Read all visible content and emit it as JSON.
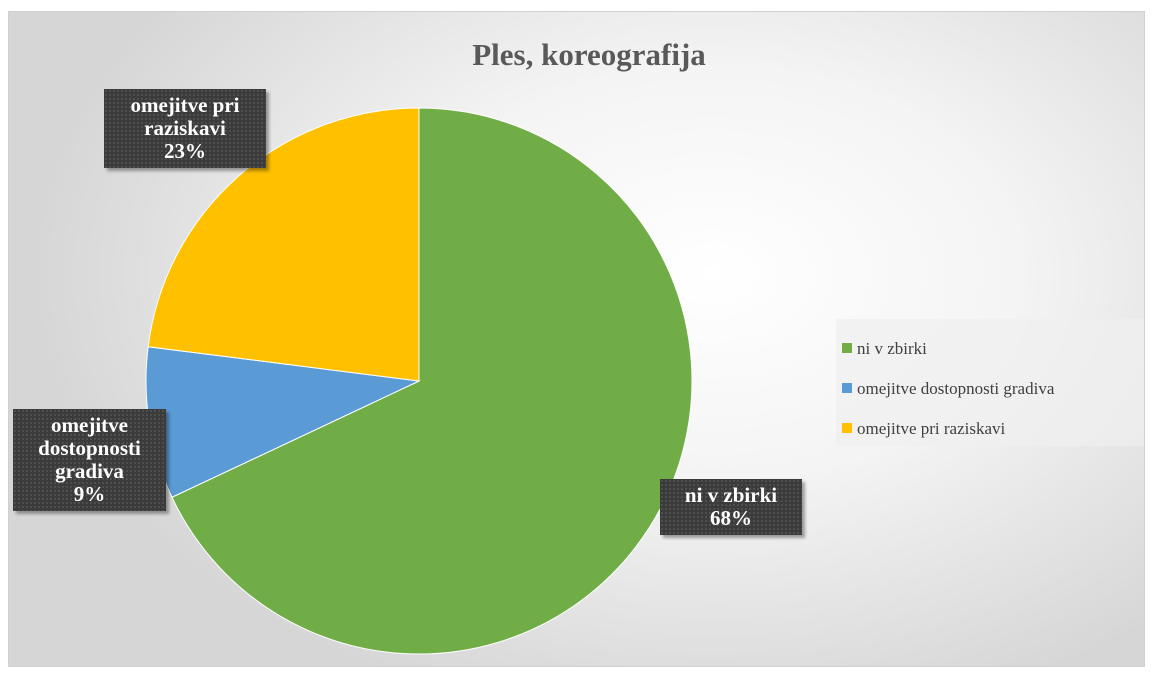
{
  "chart_data": {
    "type": "pie",
    "title": "Ples, koreografija",
    "categories": [
      "ni v zbirki",
      "omejitve dostopnosti gradiva",
      "omejitve pri raziskavi"
    ],
    "values": [
      68,
      9,
      23
    ],
    "value_labels": [
      "68%",
      "9%",
      "23%"
    ],
    "colors": [
      "#70ad47",
      "#5b9bd5",
      "#ffc000"
    ],
    "legend": "right"
  }
}
